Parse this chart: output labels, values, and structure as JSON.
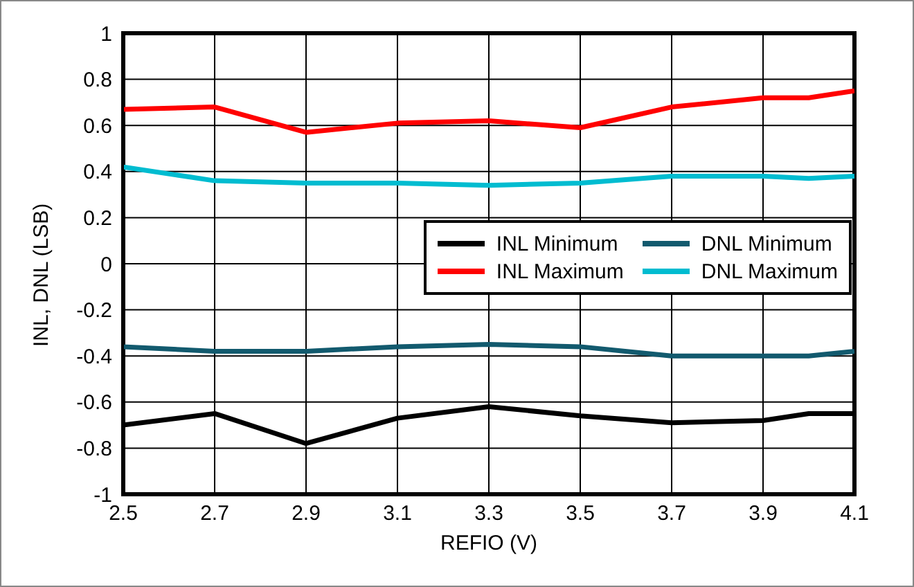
{
  "chart_data": {
    "type": "line",
    "xlabel": "REFIO (V)",
    "ylabel": "INL, DNL (LSB)",
    "x": [
      2.5,
      2.7,
      2.9,
      3.1,
      3.3,
      3.5,
      3.7,
      3.9,
      4.0,
      4.1
    ],
    "series": [
      {
        "name": "INL Minimum",
        "color": "#000000",
        "values": [
          -0.7,
          -0.65,
          -0.78,
          -0.67,
          -0.62,
          -0.66,
          -0.69,
          -0.68,
          -0.65,
          -0.65
        ]
      },
      {
        "name": "INL Maximum",
        "color": "#ff0000",
        "values": [
          0.67,
          0.68,
          0.57,
          0.61,
          0.62,
          0.59,
          0.68,
          0.72,
          0.72,
          0.75
        ]
      },
      {
        "name": "DNL Minimum",
        "color": "#125a6e",
        "values": [
          -0.36,
          -0.38,
          -0.38,
          -0.36,
          -0.35,
          -0.36,
          -0.4,
          -0.4,
          -0.4,
          -0.38
        ]
      },
      {
        "name": "DNL Maximum",
        "color": "#00bcd0",
        "values": [
          0.42,
          0.36,
          0.35,
          0.35,
          0.34,
          0.35,
          0.38,
          0.38,
          0.37,
          0.38
        ]
      }
    ],
    "xlim": [
      2.5,
      4.1
    ],
    "xticks": [
      2.5,
      2.7,
      2.9,
      3.1,
      3.3,
      3.5,
      3.7,
      3.9,
      4.1
    ],
    "ylim": [
      -1,
      1
    ],
    "yticks": [
      -1,
      -0.8,
      -0.6,
      -0.4,
      -0.2,
      0,
      0.2,
      0.4,
      0.6,
      0.8,
      1
    ],
    "grid": true,
    "legend": "right",
    "marker": "none",
    "line_style": "solid"
  }
}
